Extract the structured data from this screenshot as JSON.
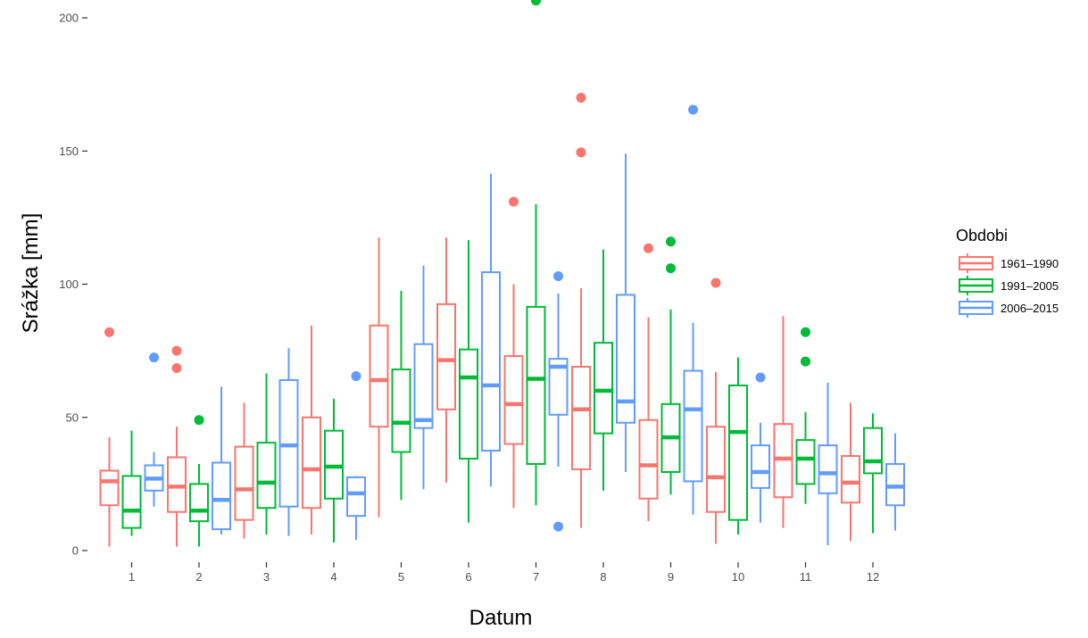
{
  "chart_data": {
    "type": "boxplot",
    "title": "",
    "xlabel": "Datum",
    "ylabel": "Srážka [mm]",
    "ylim": [
      -7,
      207
    ],
    "yticks": [
      0,
      50,
      100,
      150,
      200
    ],
    "grid": false,
    "legend_position": "right",
    "legend_title": "Obdobi",
    "categories": [
      "1",
      "2",
      "3",
      "4",
      "5",
      "6",
      "7",
      "8",
      "9",
      "10",
      "11",
      "12"
    ],
    "series": [
      {
        "name": "1961–1990",
        "color": "#F8766D",
        "boxes": [
          {
            "min": 1.5,
            "q1": 17,
            "median": 26,
            "q3": 30,
            "max": 42.5,
            "outliers": [
              82
            ]
          },
          {
            "min": 1.5,
            "q1": 14.5,
            "median": 24,
            "q3": 35,
            "max": 46.5,
            "outliers": [
              75,
              68.5
            ]
          },
          {
            "min": 4.5,
            "q1": 11.5,
            "median": 23,
            "q3": 39,
            "max": 55.5,
            "outliers": []
          },
          {
            "min": 6,
            "q1": 16,
            "median": 30.5,
            "q3": 50,
            "max": 84.5,
            "outliers": []
          },
          {
            "min": 12.5,
            "q1": 46.5,
            "median": 64,
            "q3": 84.5,
            "max": 117.5,
            "outliers": []
          },
          {
            "min": 25.5,
            "q1": 53,
            "median": 71.5,
            "q3": 92.5,
            "max": 117.5,
            "outliers": []
          },
          {
            "min": 16,
            "q1": 40,
            "median": 55,
            "q3": 73,
            "max": 100,
            "outliers": [
              131
            ]
          },
          {
            "min": 8.5,
            "q1": 30.5,
            "median": 53,
            "q3": 69,
            "max": 98.5,
            "outliers": [
              170,
              149.5
            ]
          },
          {
            "min": 11,
            "q1": 19.5,
            "median": 32,
            "q3": 49,
            "max": 87.5,
            "outliers": [
              113.5
            ]
          },
          {
            "min": 2.5,
            "q1": 14.5,
            "median": 27.5,
            "q3": 46.5,
            "max": 67,
            "outliers": [
              100.5
            ]
          },
          {
            "min": 8.5,
            "q1": 20,
            "median": 34.5,
            "q3": 47.5,
            "max": 88,
            "outliers": []
          },
          {
            "min": 3.5,
            "q1": 18,
            "median": 25.5,
            "q3": 35.5,
            "max": 55.5,
            "outliers": []
          }
        ]
      },
      {
        "name": "1991–2005",
        "color": "#00BA38",
        "boxes": [
          {
            "min": 5.5,
            "q1": 8.5,
            "median": 15,
            "q3": 28,
            "max": 45,
            "outliers": []
          },
          {
            "min": 1.5,
            "q1": 11,
            "median": 15,
            "q3": 25,
            "max": 32.5,
            "outliers": [
              49
            ]
          },
          {
            "min": 6,
            "q1": 16,
            "median": 25.5,
            "q3": 40.5,
            "max": 66.5,
            "outliers": []
          },
          {
            "min": 3,
            "q1": 19.5,
            "median": 31.5,
            "q3": 45,
            "max": 57,
            "outliers": []
          },
          {
            "min": 19,
            "q1": 37,
            "median": 48,
            "q3": 68,
            "max": 97.5,
            "outliers": []
          },
          {
            "min": 10.5,
            "q1": 34.5,
            "median": 65,
            "q3": 75.5,
            "max": 116.5,
            "outliers": []
          },
          {
            "min": 17,
            "q1": 32.5,
            "median": 64.5,
            "q3": 91.5,
            "max": 130,
            "outliers": [
              206.5
            ]
          },
          {
            "min": 22.5,
            "q1": 44,
            "median": 60,
            "q3": 78,
            "max": 113,
            "outliers": []
          },
          {
            "min": 21,
            "q1": 29.5,
            "median": 42.5,
            "q3": 55,
            "max": 90.5,
            "outliers": [
              116,
              106
            ]
          },
          {
            "min": 6,
            "q1": 11.5,
            "median": 44.5,
            "q3": 62,
            "max": 72.5,
            "outliers": []
          },
          {
            "min": 17.5,
            "q1": 25,
            "median": 34.5,
            "q3": 41.5,
            "max": 52,
            "outliers": [
              82,
              71
            ]
          },
          {
            "min": 6.5,
            "q1": 29,
            "median": 33.5,
            "q3": 46,
            "max": 51.5,
            "outliers": []
          }
        ]
      },
      {
        "name": "2006–2015",
        "color": "#619CFF",
        "boxes": [
          {
            "min": 16.5,
            "q1": 22.5,
            "median": 27,
            "q3": 32,
            "max": 37,
            "outliers": [
              72.5
            ]
          },
          {
            "min": 6,
            "q1": 8,
            "median": 19,
            "q3": 33,
            "max": 61.5,
            "outliers": []
          },
          {
            "min": 5.5,
            "q1": 16.5,
            "median": 39.5,
            "q3": 64,
            "max": 76,
            "outliers": []
          },
          {
            "min": 4,
            "q1": 13,
            "median": 21.5,
            "q3": 27.5,
            "max": 28,
            "outliers": [
              65.5
            ]
          },
          {
            "min": 23,
            "q1": 46,
            "median": 49,
            "q3": 77.5,
            "max": 107,
            "outliers": []
          },
          {
            "min": 24,
            "q1": 37.5,
            "median": 62,
            "q3": 104.5,
            "max": 141.5,
            "outliers": []
          },
          {
            "min": 31.5,
            "q1": 51,
            "median": 69,
            "q3": 72,
            "max": 96.5,
            "outliers": [
              103,
              9
            ]
          },
          {
            "min": 29.5,
            "q1": 48,
            "median": 56,
            "q3": 96,
            "max": 149,
            "outliers": []
          },
          {
            "min": 13.5,
            "q1": 26,
            "median": 53,
            "q3": 67.5,
            "max": 85.5,
            "outliers": [
              165.5
            ]
          },
          {
            "min": 10.5,
            "q1": 23.5,
            "median": 29.5,
            "q3": 39.5,
            "max": 48,
            "outliers": [
              65
            ]
          },
          {
            "min": 2,
            "q1": 21.5,
            "median": 29,
            "q3": 39.5,
            "max": 63,
            "outliers": []
          },
          {
            "min": 7.5,
            "q1": 17,
            "median": 24,
            "q3": 32.5,
            "max": 44,
            "outliers": []
          }
        ]
      }
    ]
  }
}
